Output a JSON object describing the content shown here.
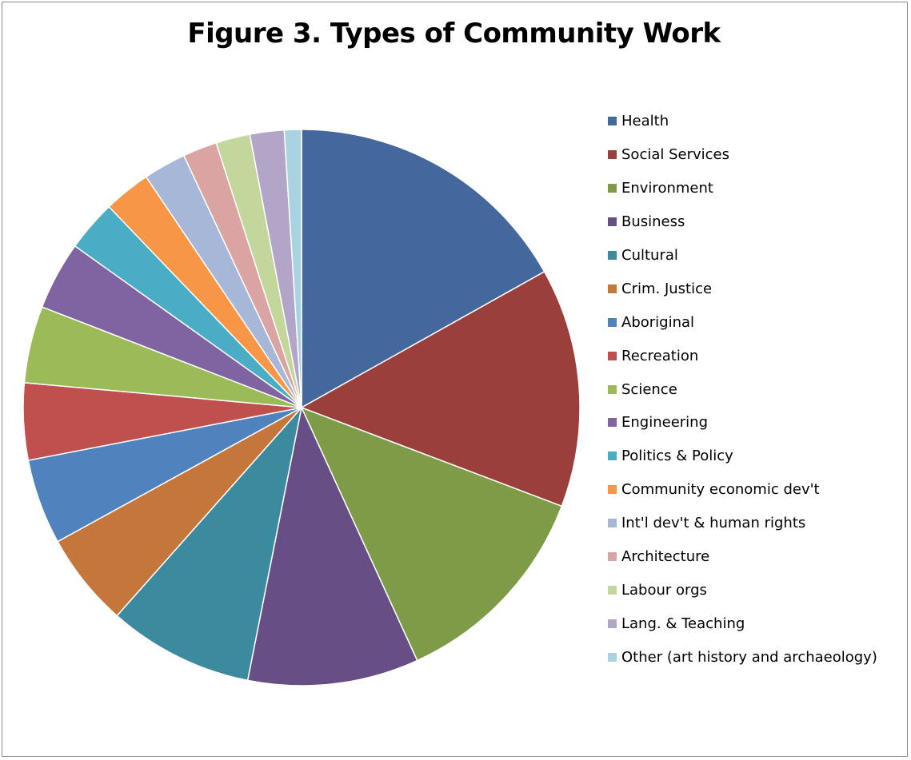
{
  "chart_data": {
    "type": "pie",
    "title": "Figure 3. Types of Community Work",
    "legend_position": "right",
    "start_angle": "12 o'clock, clockwise",
    "slices": [
      {
        "label": "Health",
        "value": 17.0,
        "color": "#44689c"
      },
      {
        "label": "Social Services",
        "value": 14.0,
        "color": "#9b3f3c"
      },
      {
        "label": "Environment",
        "value": 12.5,
        "color": "#7e9b47"
      },
      {
        "label": "Business",
        "value": 10.0,
        "color": "#674f86"
      },
      {
        "label": "Cultural",
        "value": 8.5,
        "color": "#3b8a9e"
      },
      {
        "label": "Crim. Justice",
        "value": 5.5,
        "color": "#c5763a"
      },
      {
        "label": "Aboriginal",
        "value": 5.0,
        "color": "#5082bd"
      },
      {
        "label": "Recreation",
        "value": 4.5,
        "color": "#c0504d"
      },
      {
        "label": "Science",
        "value": 4.5,
        "color": "#9bbb59"
      },
      {
        "label": "Engineering",
        "value": 4.0,
        "color": "#8064a2"
      },
      {
        "label": "Politics & Policy",
        "value": 3.0,
        "color": "#4bacc6"
      },
      {
        "label": "Community economic dev't",
        "value": 2.75,
        "color": "#f79646"
      },
      {
        "label": "Int'l dev't & human rights",
        "value": 2.5,
        "color": "#a6b7d8"
      },
      {
        "label": "Architecture",
        "value": 2.0,
        "color": "#d9a4a2"
      },
      {
        "label": "Labour orgs",
        "value": 2.0,
        "color": "#c3d69b"
      },
      {
        "label": "Lang. & Teaching",
        "value": 2.0,
        "color": "#b3a5c7"
      },
      {
        "label": "Other (art history and archaeology)",
        "value": 1.0,
        "color": "#a9d3e0"
      }
    ]
  }
}
